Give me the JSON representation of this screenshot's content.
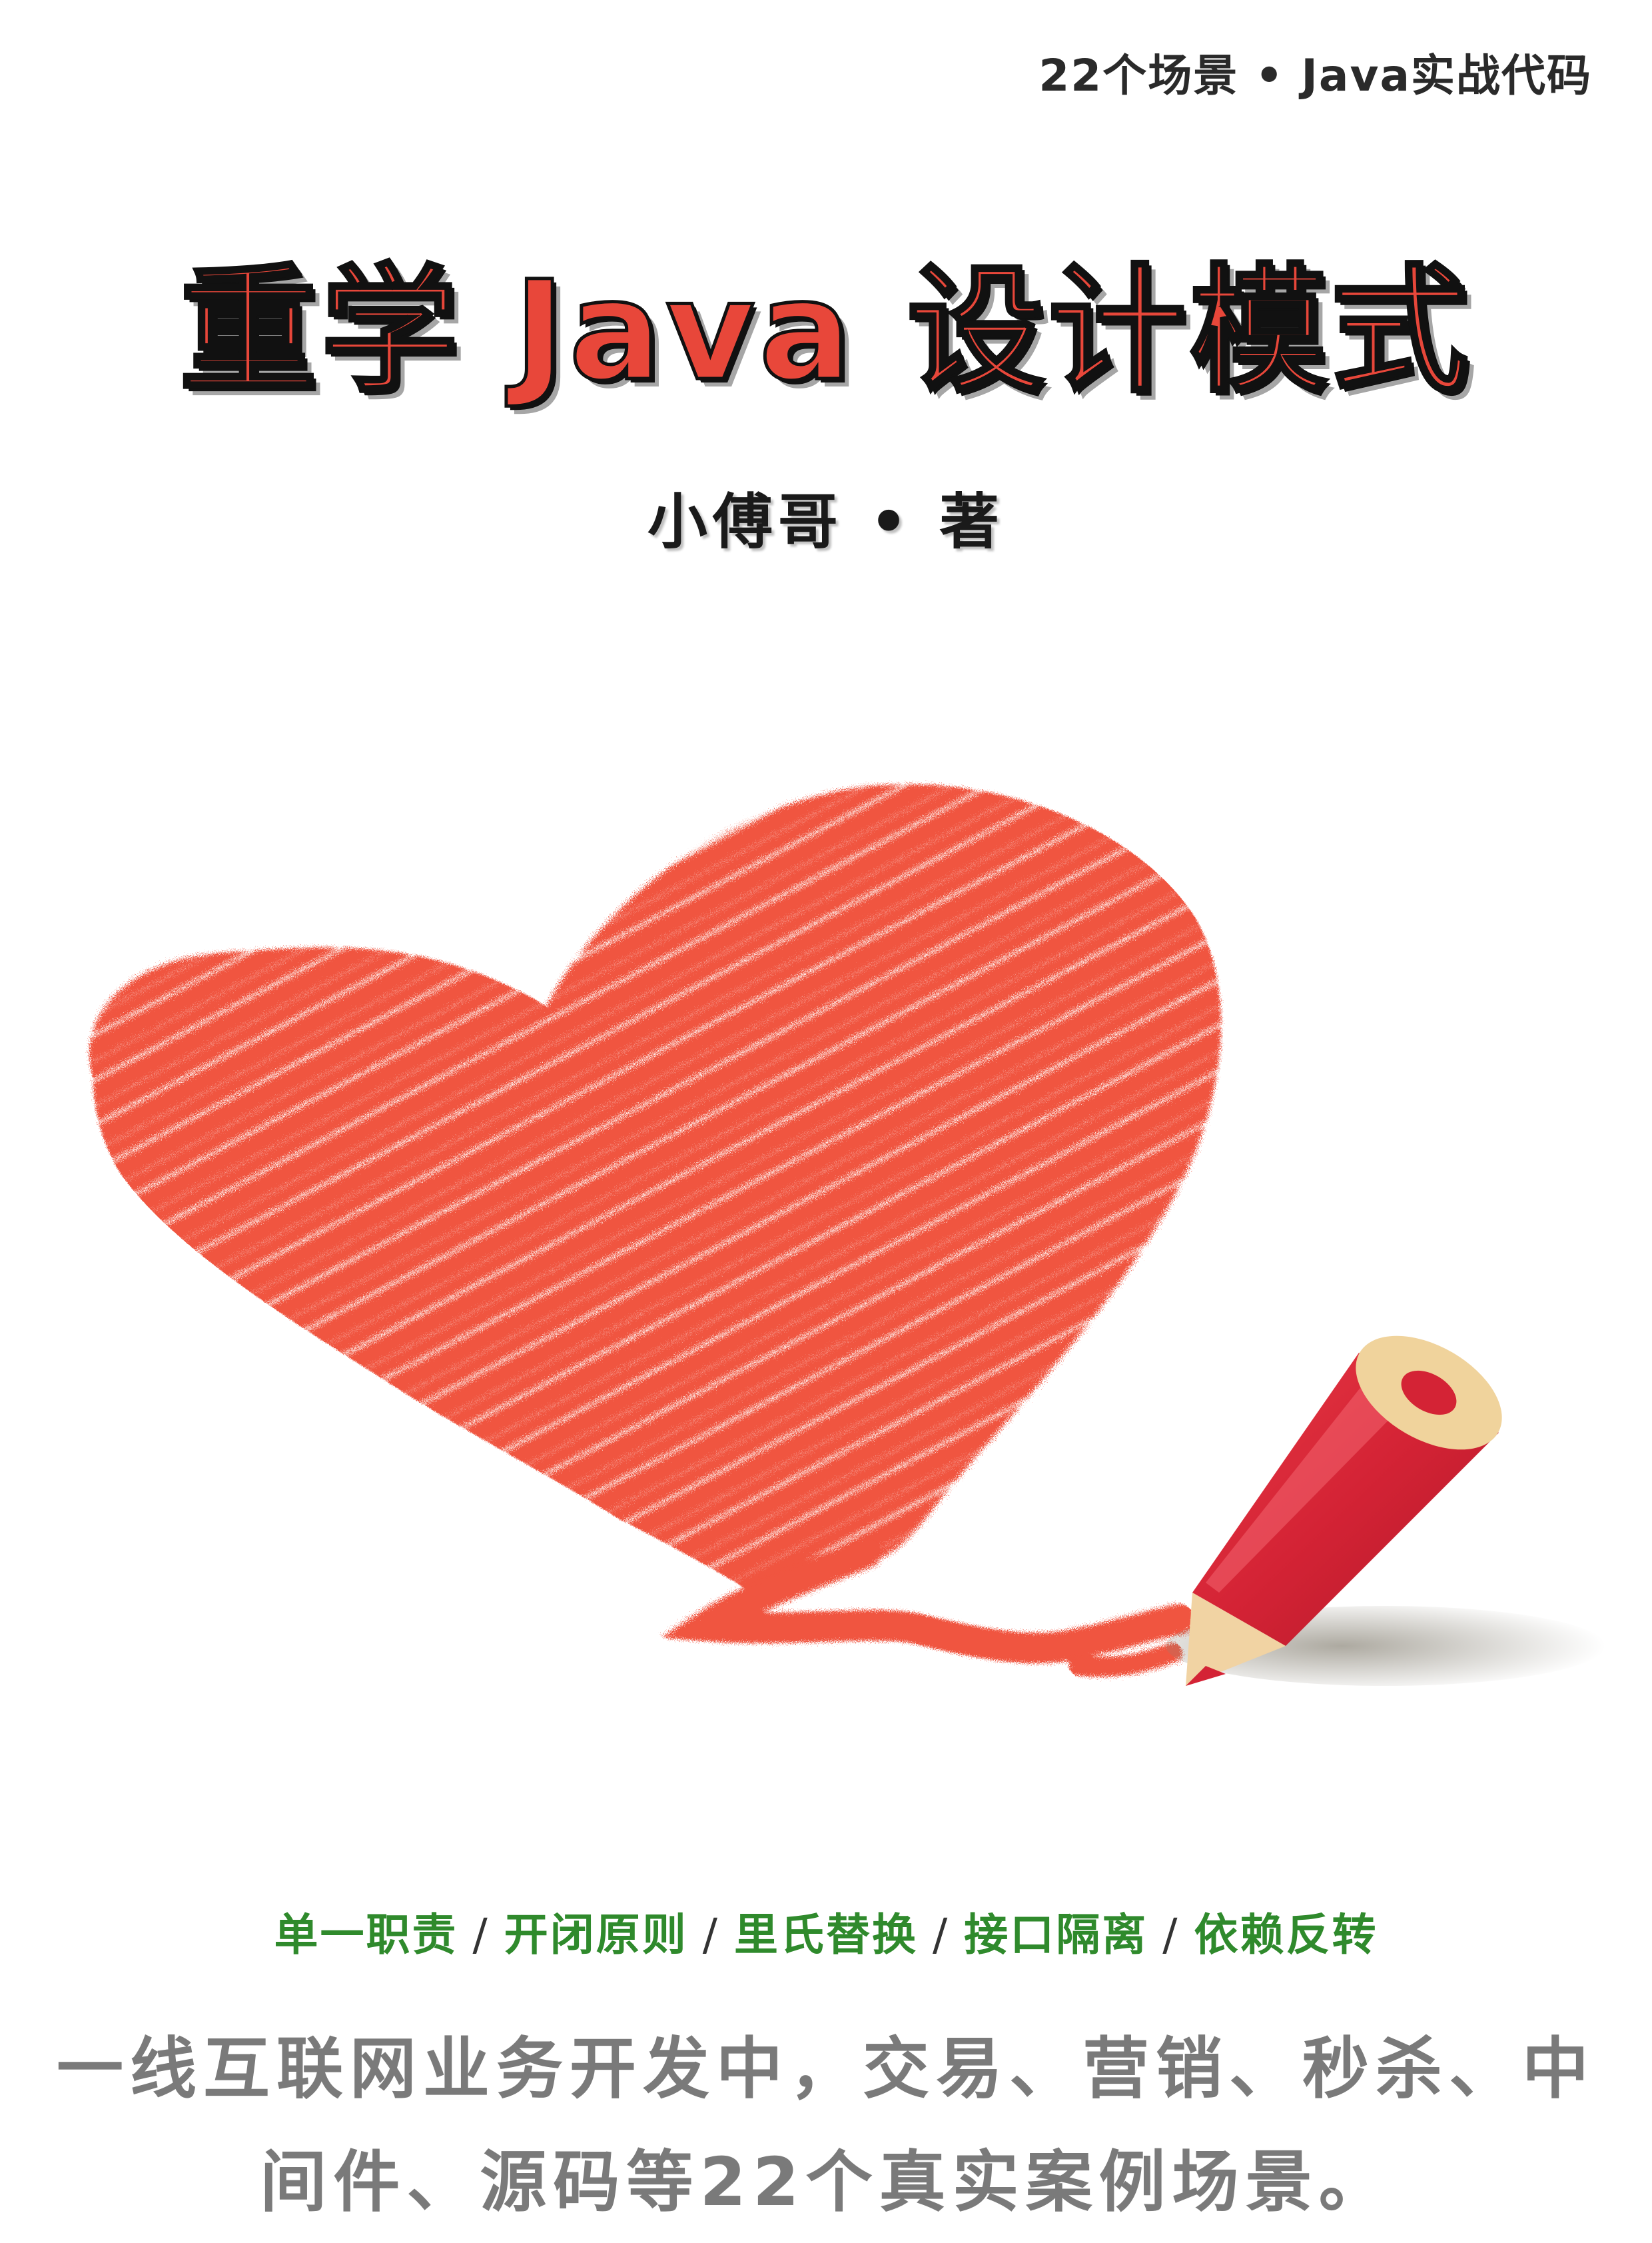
{
  "cover": {
    "tagline": "22个场景 • Java实战代码",
    "title": "重学 Java 设计模式",
    "author": "小傅哥 • 著",
    "principles": [
      "单一职责",
      "开闭原则",
      "里氏替换",
      "接口隔离",
      "依赖反转"
    ],
    "principle_separator": "/",
    "description": "一线互联网业务开发中，交易、营销、秒杀、中间件、源码等22个真实案例场景。"
  },
  "colors": {
    "title": "#e8473a",
    "heart": "#f0543f",
    "pencil": "#d9303f",
    "principles": "#2f8a2c",
    "description": "#7a7a7a"
  },
  "icons": {
    "artwork": [
      "heart-scribble-icon",
      "red-pencil-icon"
    ]
  }
}
